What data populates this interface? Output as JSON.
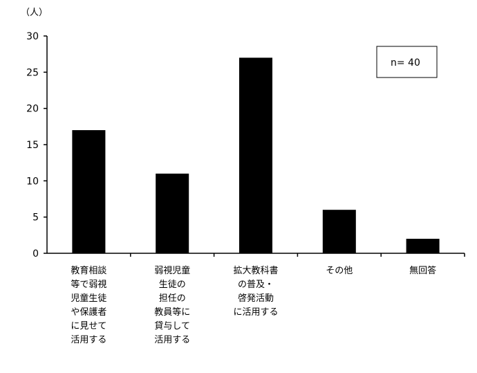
{
  "chart_data": {
    "type": "bar",
    "unit_label": "（人）",
    "categories": [
      [
        "教育相談",
        "等で弱視",
        "児童生徒",
        "や保護者",
        "に見せて",
        "活用する"
      ],
      [
        "弱視児童",
        "生徒の",
        "担任の",
        "教員等に",
        "貸与して",
        "活用する"
      ],
      [
        "拡大教科書",
        "の普及・",
        "啓発活動",
        "に活用する"
      ],
      [
        "その他"
      ],
      [
        "無回答"
      ]
    ],
    "values": [
      17,
      11,
      27,
      6,
      2
    ],
    "ylim": [
      0,
      30
    ],
    "yticks": [
      0,
      5,
      10,
      15,
      20,
      25,
      30
    ],
    "grid": false,
    "legend_text": "n= 40",
    "legend_placement": "top-right",
    "bar_color": "#000000"
  }
}
